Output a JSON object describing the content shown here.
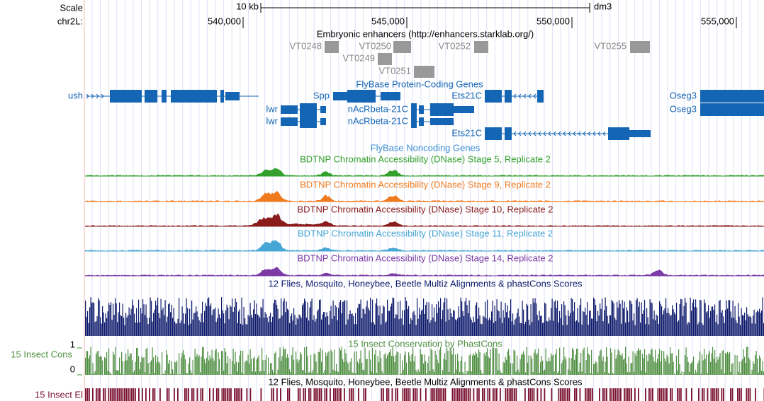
{
  "ruler": {
    "scale_label": "Scale",
    "scale_value": "10 kb",
    "assembly": "dm3",
    "chrom": "chr2L:",
    "positions": [
      "540,000",
      "545,000",
      "550,000",
      "555,000"
    ]
  },
  "enhancers": {
    "title": "Embryonic enhancers (http://enhancers.starklab.org/)",
    "items": [
      "VT0248",
      "VT0250",
      "VT0252",
      "VT0255",
      "VT0249",
      "VT0251"
    ]
  },
  "genes": {
    "title": "FlyBase Protein-Coding Genes",
    "labels": [
      "ush",
      "Spp",
      "Ets21C",
      "Oseg3",
      "lwr",
      "nAcRbeta-21C",
      "Oseg3",
      "lwr",
      "nAcRbeta-21C",
      "Ets21C"
    ]
  },
  "noncoding": {
    "title": "FlyBase Noncoding Genes"
  },
  "signal_tracks": [
    "BDTNP Chromatin Accessibility (DNase) Stage 5, Replicate 2",
    "BDTNP Chromatin Accessibility (DNase) Stage 9, Replicate 2",
    "BDTNP Chromatin Accessibility (DNase) Stage 10, Replicate 2",
    "BDTNP Chromatin Accessibility (DNase) Stage 11, Replicate 2",
    "BDTNP Chromatin Accessibility (DNase) Stage 14, Replicate 2"
  ],
  "multiz": {
    "title": "12 Flies, Mosquito, Honeybee, Beetle Multiz Alignments & phastCons Scores"
  },
  "cons": {
    "title": "15 Insect Conservation by PhastCons",
    "label": "15 Insect Cons",
    "max": "1",
    "min": "0"
  },
  "elements": {
    "title": "12 Flies, Mosquito, Honeybee, Beetle Multiz Alignments & phastCons Scores",
    "label": "15 Insect El"
  }
}
